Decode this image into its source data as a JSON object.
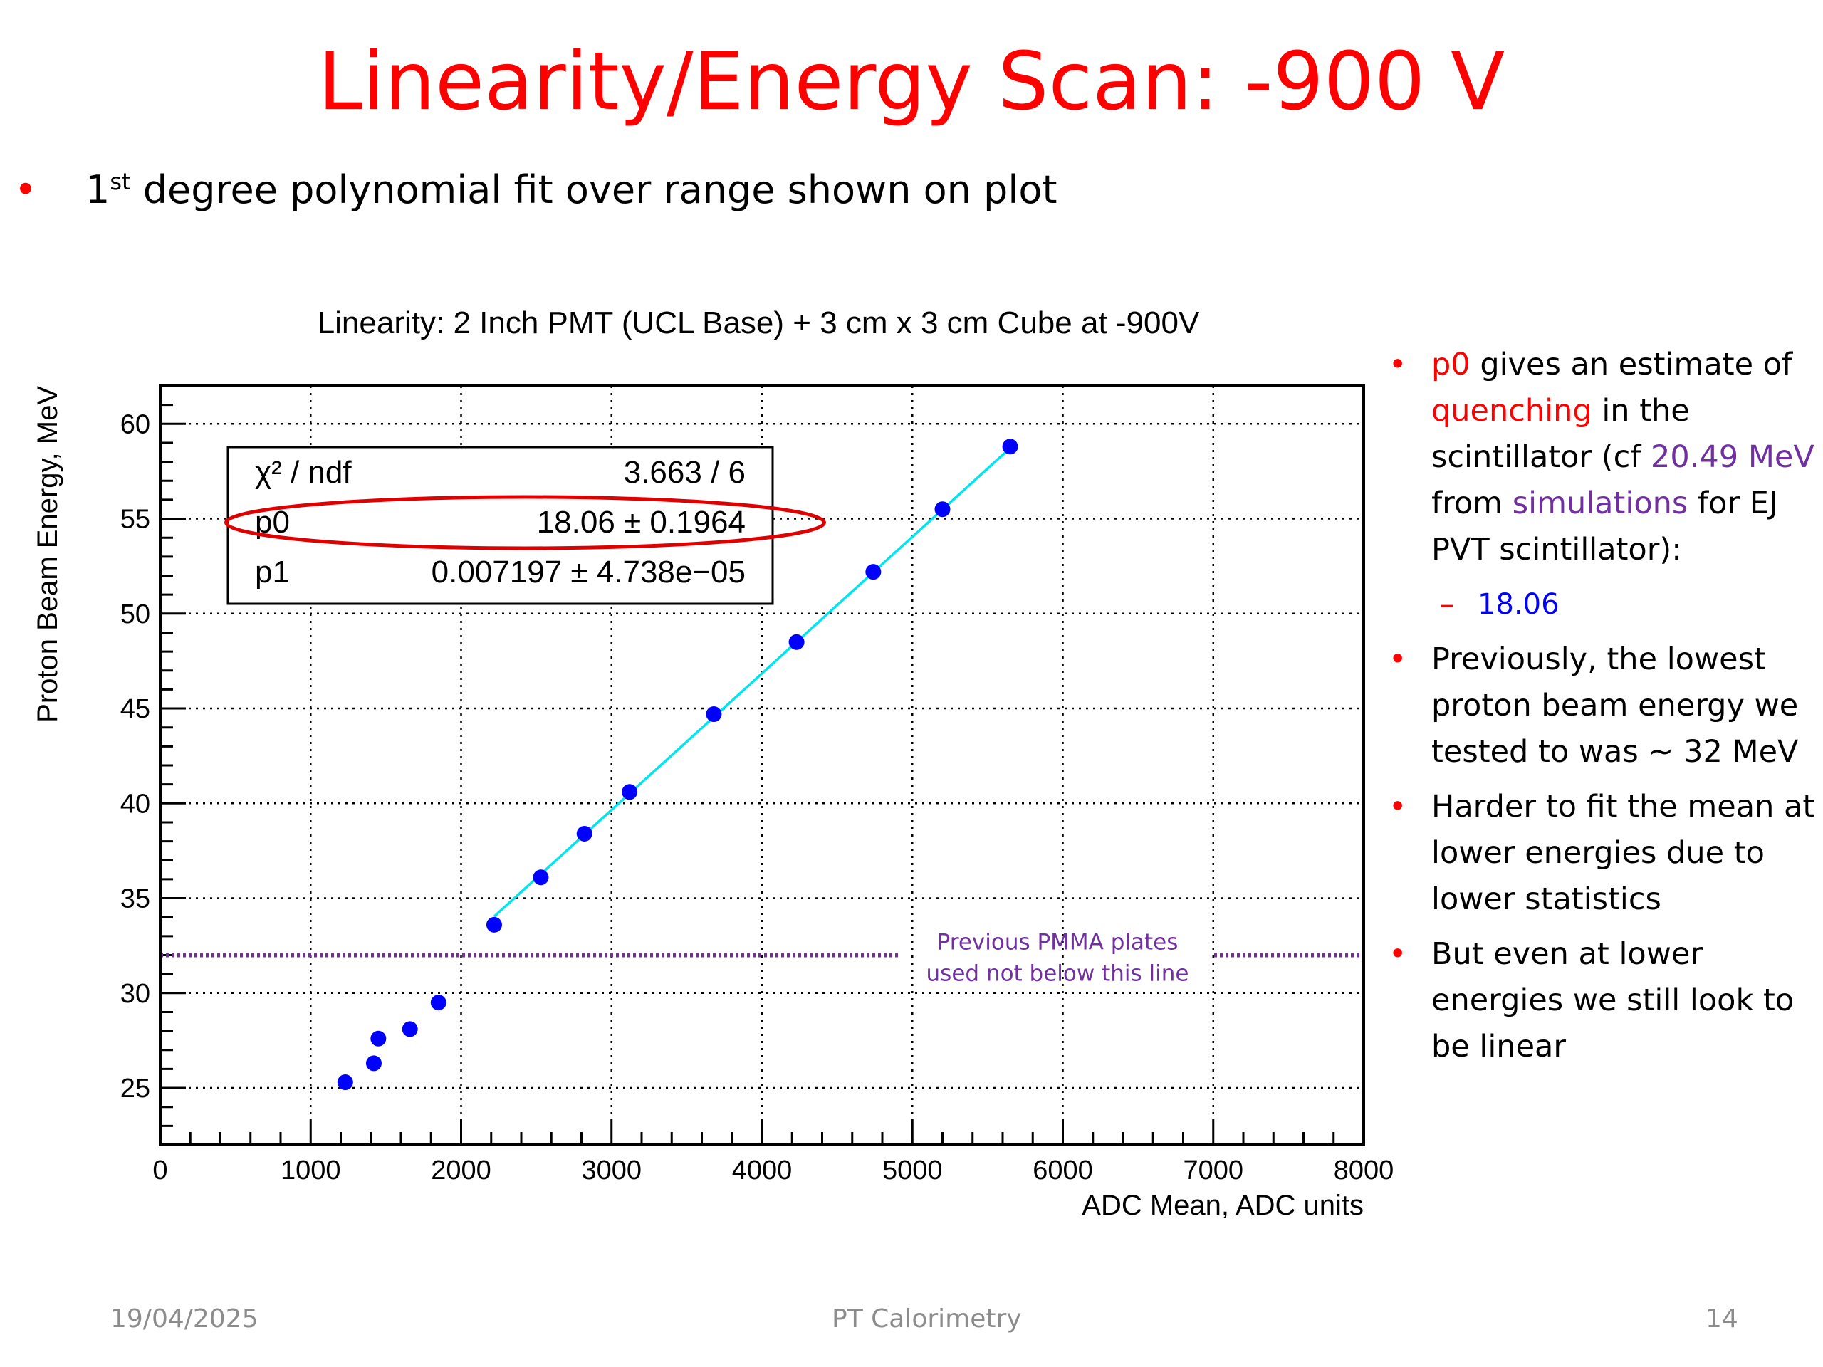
{
  "slide": {
    "title": "Linearity/Energy Scan: -900 V",
    "bullet_pre": "1",
    "bullet_sup": "st",
    "bullet_post": " degree polynomial fit over range shown on plot",
    "footer_date": "19/04/2025",
    "footer_center": "PT Calorimetry",
    "footer_page": "14",
    "bullet_color": "#ff0000"
  },
  "side": {
    "b1_red1": "p0",
    "b1_t1": " gives an estimate of ",
    "b1_red2": "quenching",
    "b1_t2": " in the scintillator (cf ",
    "b1_purple1": "20.49 MeV",
    "b1_t3": " from ",
    "b1_purple2": "simulations",
    "b1_t4": " for EJ PVT scintillator):",
    "b1_sub_dash": "–",
    "b1_sub": "18.06",
    "b2": "Previously, the lowest proton beam energy we tested to was ~ 32 MeV",
    "b3": "Harder to fit the mean at lower energies due to lower statistics",
    "b4": "But even at lower energies we still look to be linear"
  },
  "chart_data": {
    "type": "scatter",
    "title": "Linearity: 2 Inch PMT (UCL Base) + 3 cm x 3 cm Cube at -900V",
    "xlabel": "ADC Mean, ADC units",
    "ylabel": "Proton Beam Energy, MeV",
    "xlim": [
      0,
      8000
    ],
    "ylim": [
      22,
      62
    ],
    "xticks": [
      0,
      1000,
      2000,
      3000,
      4000,
      5000,
      6000,
      7000,
      8000
    ],
    "yticks": [
      25,
      30,
      35,
      40,
      45,
      50,
      55,
      60
    ],
    "grid": true,
    "points": [
      {
        "x": 1230,
        "y": 25.3
      },
      {
        "x": 1420,
        "y": 26.3
      },
      {
        "x": 1450,
        "y": 27.6
      },
      {
        "x": 1660,
        "y": 28.1
      },
      {
        "x": 1850,
        "y": 29.5
      },
      {
        "x": 2220,
        "y": 33.6
      },
      {
        "x": 2530,
        "y": 36.1
      },
      {
        "x": 2820,
        "y": 38.4
      },
      {
        "x": 3120,
        "y": 40.6
      },
      {
        "x": 3680,
        "y": 44.7
      },
      {
        "x": 4230,
        "y": 48.5
      },
      {
        "x": 4740,
        "y": 52.2
      },
      {
        "x": 5200,
        "y": 55.5
      },
      {
        "x": 5650,
        "y": 58.8
      }
    ],
    "point_color": "#0000ff",
    "fit": {
      "x_from": 2220,
      "x_to": 5650,
      "p0": 18.06,
      "p1": 0.007197,
      "color": "#00e5ee"
    },
    "stats_box": {
      "rows": [
        {
          "label": "χ² / ndf",
          "value": "3.663 / 6"
        },
        {
          "label": "p0",
          "value": "18.06 ± 0.1964"
        },
        {
          "label": "p1",
          "value": "0.007197 ± 4.738e−05"
        }
      ],
      "highlight_row": 1,
      "highlight_color": "#e00000"
    },
    "reference_line": {
      "y": 32,
      "color": "#7030a0",
      "label_line1": "Previous PMMA plates",
      "label_line2": "used not below this line"
    }
  }
}
